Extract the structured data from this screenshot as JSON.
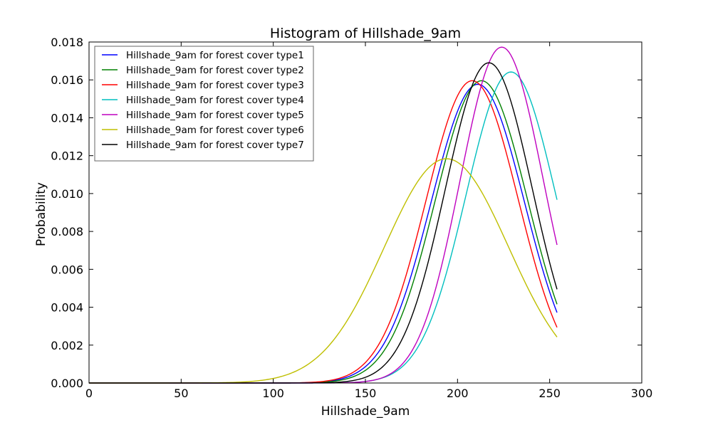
{
  "chart_data": {
    "type": "line",
    "title": "Histogram of Hillshade_9am",
    "xlabel": "Hillshade_9am",
    "ylabel": "Probability",
    "xlim": [
      0,
      300
    ],
    "ylim": [
      0,
      0.018
    ],
    "x_ticks": [
      "0",
      "50",
      "100",
      "150",
      "200",
      "250",
      "300"
    ],
    "y_ticks": [
      "0.000",
      "0.002",
      "0.004",
      "0.006",
      "0.008",
      "0.010",
      "0.012",
      "0.014",
      "0.016",
      "0.018"
    ],
    "x_range": [
      0,
      254
    ],
    "grid": false,
    "legend_position": "upper-left",
    "series": [
      {
        "name": "Hillshade_9am for forest cover type1",
        "color": "#0000ff",
        "mean": 211,
        "std": 25.3
      },
      {
        "name": "Hillshade_9am for forest cover type2",
        "color": "#008000",
        "mean": 213,
        "std": 25.0
      },
      {
        "name": "Hillshade_9am for forest cover type3",
        "color": "#ff0000",
        "mean": 208,
        "std": 25.0
      },
      {
        "name": "Hillshade_9am for forest cover type4",
        "color": "#00bfbf",
        "mean": 229,
        "std": 24.3
      },
      {
        "name": "Hillshade_9am for forest cover type5",
        "color": "#bf00bf",
        "mean": 224,
        "std": 22.5
      },
      {
        "name": "Hillshade_9am for forest cover type6",
        "color": "#bfbf00",
        "mean": 194,
        "std": 33.7
      },
      {
        "name": "Hillshade_9am for forest cover type7",
        "color": "#000000",
        "mean": 217,
        "std": 23.6
      }
    ]
  }
}
